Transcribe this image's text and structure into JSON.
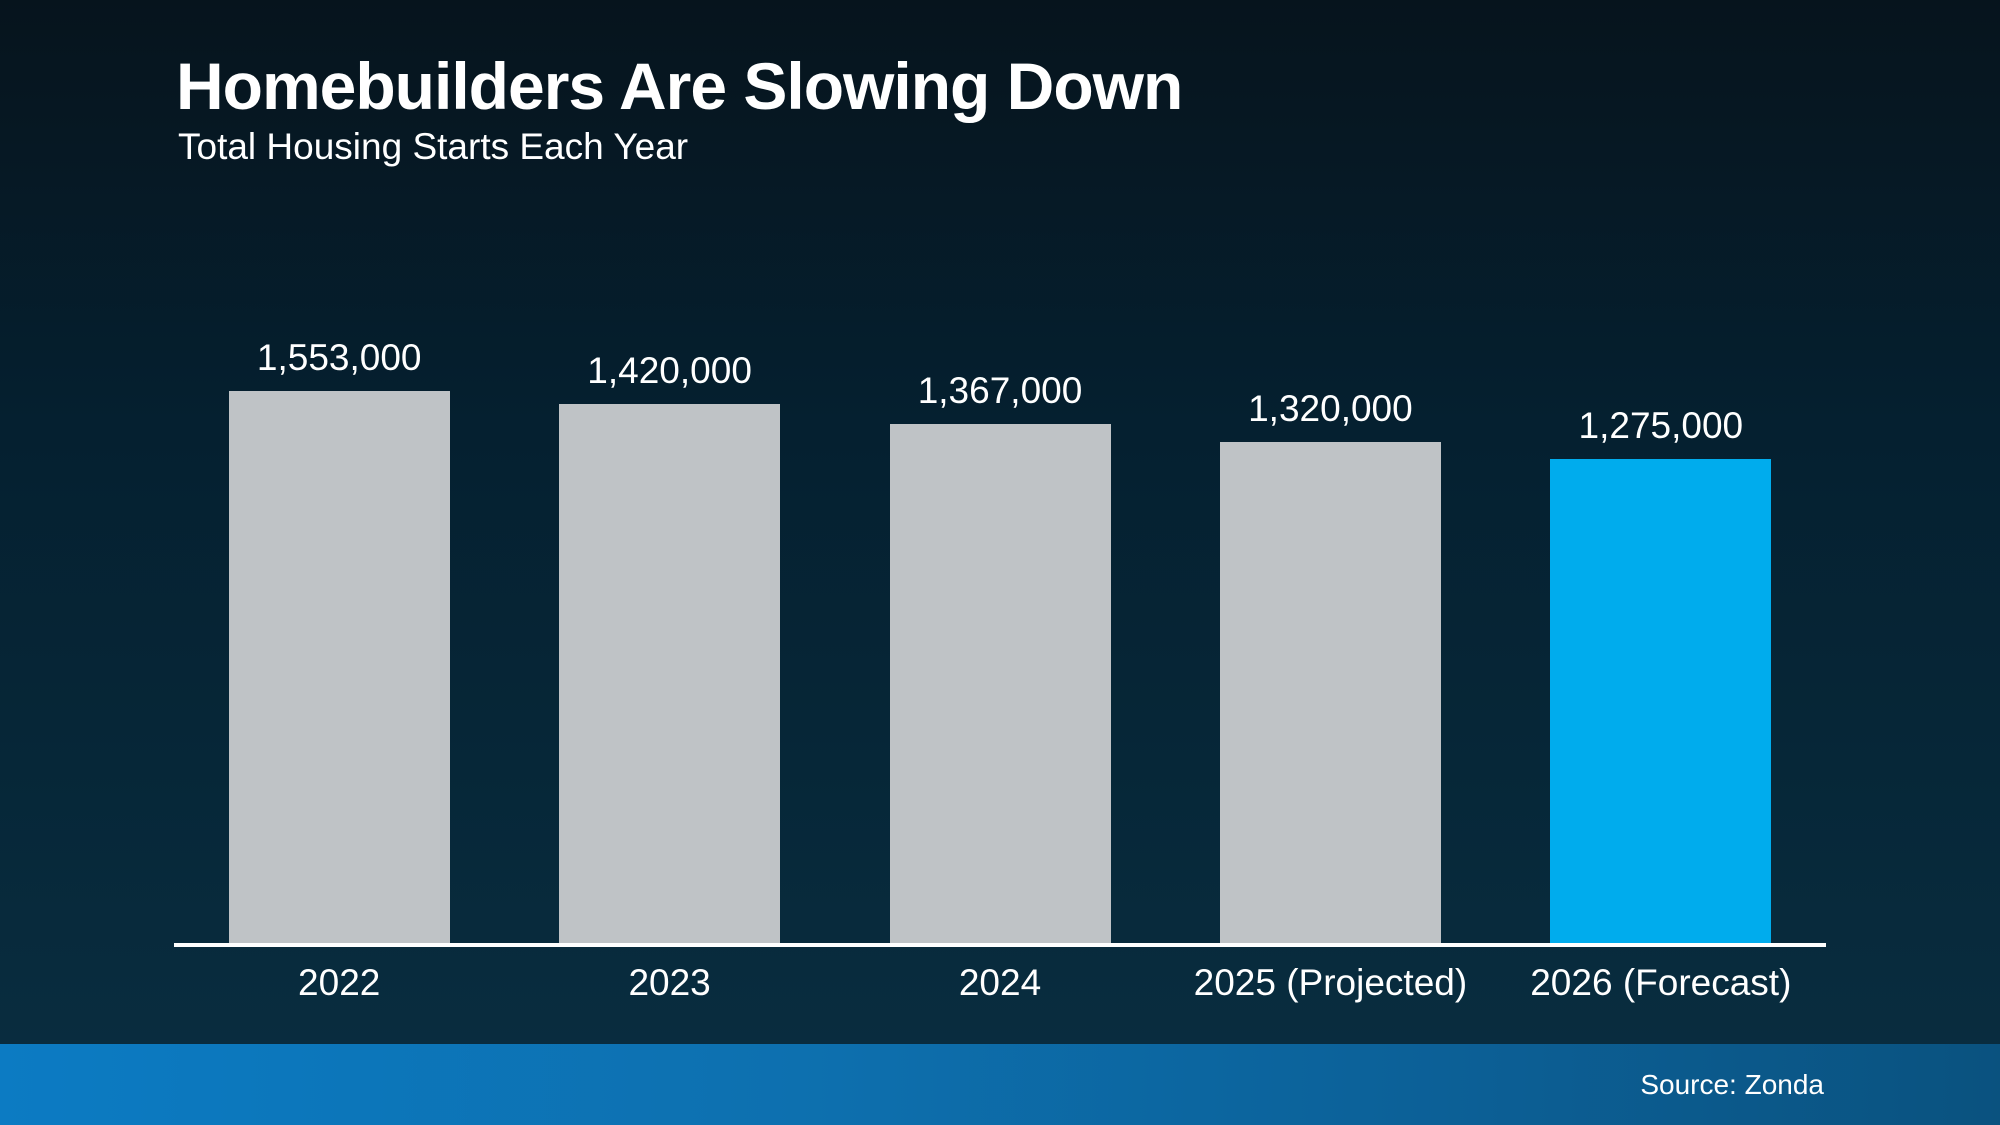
{
  "header": {
    "title": "Homebuilders Are Slowing Down",
    "subtitle": "Total Housing Starts Each Year"
  },
  "footer": {
    "source_label": "Source: Zonda"
  },
  "colors": {
    "bar_default": "#bfc3c6",
    "bar_highlight": "#00aced",
    "axis_line": "#ffffff",
    "background_top": "#06141d",
    "background_bottom": "#0a2e41",
    "footer_left": "#0c7bc3",
    "footer_right": "#0a527f",
    "text": "#ffffff"
  },
  "chart_data": {
    "type": "bar",
    "title": "Homebuilders Are Slowing Down",
    "subtitle": "Total Housing Starts Each Year",
    "categories": [
      "2022",
      "2023",
      "2024",
      "2025 (Projected)",
      "2026 (Forecast)"
    ],
    "values": [
      1553000,
      1420000,
      1367000,
      1320000,
      1275000
    ],
    "value_labels": [
      "1,553,000",
      "1,420,000",
      "1,367,000",
      "1,320,000",
      "1,275,000"
    ],
    "bar_colors": [
      "#bfc3c6",
      "#bfc3c6",
      "#bfc3c6",
      "#bfc3c6",
      "#00aced"
    ],
    "highlight_index": 4,
    "xlabel": "",
    "ylabel": "",
    "ylim": [
      0,
      1600000
    ],
    "grid": false,
    "legend": false,
    "source": "Source: Zonda"
  }
}
